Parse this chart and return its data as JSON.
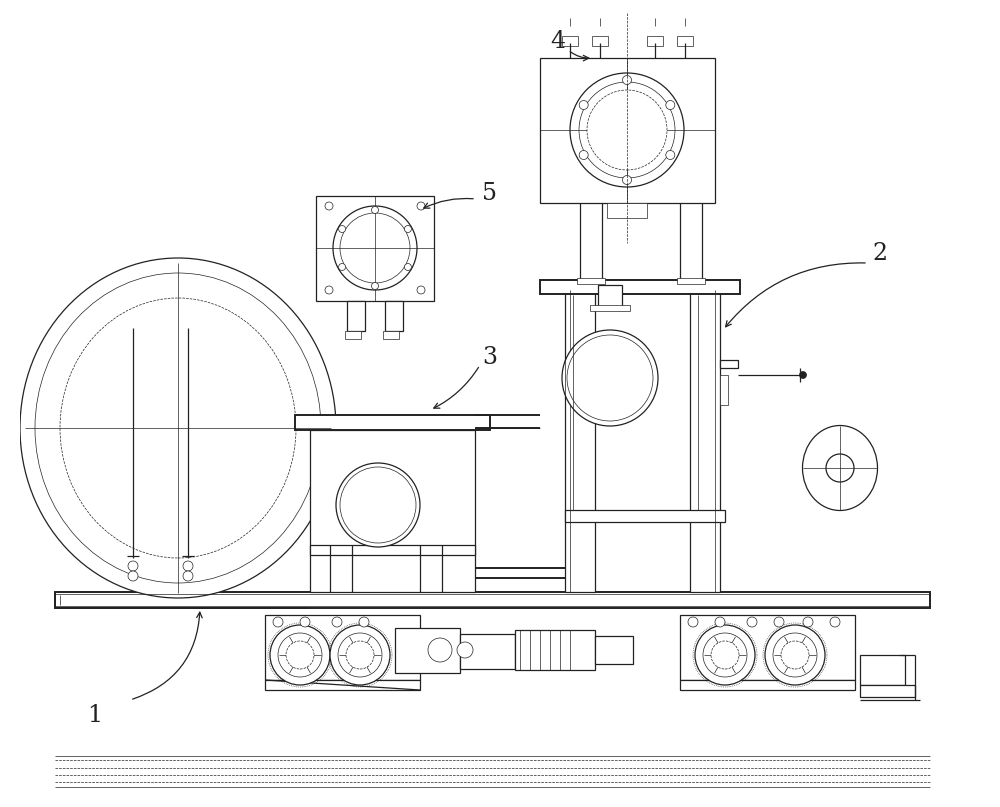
{
  "bg_color": "#ffffff",
  "line_color": "#222222",
  "thin": 0.5,
  "med": 0.9,
  "thick": 1.4,
  "label_fontsize": 17
}
